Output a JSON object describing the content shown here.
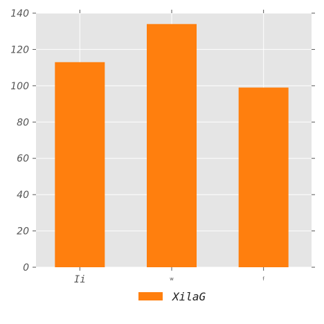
{
  "chart_data": {
    "type": "bar",
    "categories": [
      "Ii",
      "w",
      "f"
    ],
    "series": [
      {
        "name": "XilaG",
        "values": [
          113,
          134,
          99
        ],
        "color": "#ff7f0e"
      }
    ],
    "title": "",
    "xlabel": "",
    "ylabel": "",
    "ylim": [
      0,
      140
    ],
    "yticks": [
      "0",
      "20",
      "40",
      "60",
      "80",
      "100",
      "120",
      "140"
    ],
    "grid": true,
    "background": "#e5e5e5",
    "legend_placement": "bottom-center"
  }
}
